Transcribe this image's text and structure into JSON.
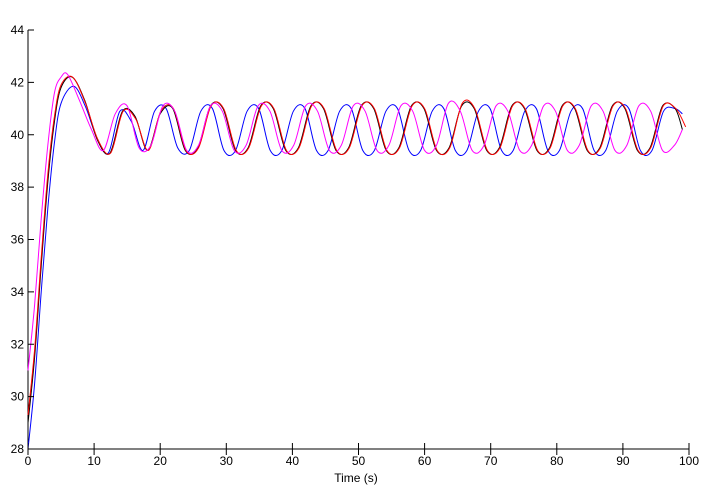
{
  "chart_data": {
    "type": "line",
    "title": "",
    "xlabel": "Time (s)",
    "ylabel": "",
    "caption": "",
    "xlim": [
      0,
      100
    ],
    "ylim": [
      28,
      44
    ],
    "xticks": [
      0,
      10,
      20,
      30,
      40,
      50,
      60,
      70,
      80,
      90,
      100
    ],
    "yticks": [
      28,
      30,
      32,
      34,
      36,
      38,
      40,
      42,
      44
    ],
    "grid": false,
    "series": [
      {
        "color": "#0000ff",
        "x": [
          0,
          1,
          2,
          3,
          4,
          5,
          6.9,
          8.65,
          10.4,
          12.15,
          13.9,
          15.65,
          17.4,
          19.15,
          20.9,
          22.65,
          24.4,
          26.15,
          27.9,
          29.65,
          31.4,
          33.15,
          34.9,
          36.65,
          38.4,
          40.15,
          41.9,
          43.65,
          45.4,
          47.15,
          48.9,
          50.65,
          52.4,
          54.15,
          55.9,
          57.65,
          59.4,
          61.15,
          62.9,
          64.65,
          66.4,
          68.15,
          69.9,
          71.65,
          73.4,
          75.15,
          76.9,
          78.65,
          80.4,
          82.15,
          83.9,
          85.65,
          87.4,
          89.15,
          90.9,
          92.65,
          94.4,
          96.15,
          97.9,
          99
        ],
        "y": [
          28.0,
          30.5,
          34.0,
          37.2,
          39.7,
          41.2,
          41.85,
          41.1,
          39.9,
          39.3,
          40.9,
          40.5,
          39.4,
          40.9,
          41.0,
          39.5,
          39.4,
          40.9,
          41.0,
          39.4,
          39.4,
          40.9,
          41.0,
          39.4,
          39.4,
          40.9,
          41.0,
          39.4,
          39.4,
          40.9,
          41.0,
          39.4,
          39.4,
          40.9,
          41.0,
          39.4,
          39.4,
          40.9,
          41.0,
          39.4,
          39.4,
          40.9,
          41.0,
          39.4,
          39.4,
          40.9,
          41.0,
          39.4,
          39.4,
          40.9,
          41.0,
          39.4,
          39.4,
          40.9,
          41.0,
          39.4,
          39.4,
          40.9,
          41.0,
          40.8
        ]
      },
      {
        "color": "#000000",
        "x": [
          0,
          1,
          2,
          3,
          4,
          5,
          6.7,
          8.6,
          10.5,
          12.4,
          14.3,
          16.2,
          18.1,
          20.0,
          21.9,
          23.8,
          25.7,
          27.6,
          29.5,
          31.4,
          33.3,
          35.2,
          37.1,
          39.0,
          40.9,
          42.8,
          44.7,
          46.6,
          48.5,
          50.4,
          52.3,
          54.2,
          56.1,
          58.0,
          59.9,
          61.8,
          63.7,
          65.6,
          67.5,
          69.4,
          71.3,
          73.2,
          75.1,
          77.0,
          78.9,
          80.8,
          82.7,
          84.6,
          86.5,
          88.4,
          90.3,
          92.2,
          94.1,
          96.0,
          97.9,
          99
        ],
        "y": [
          29.0,
          31.5,
          35.0,
          38.2,
          40.5,
          41.8,
          42.2,
          41.3,
          39.8,
          39.3,
          40.9,
          40.7,
          39.4,
          40.8,
          41.0,
          39.4,
          39.5,
          41.1,
          41.0,
          39.4,
          39.5,
          41.1,
          41.0,
          39.4,
          39.5,
          41.1,
          41.0,
          39.4,
          39.5,
          41.1,
          41.0,
          39.4,
          39.5,
          41.1,
          41.0,
          39.4,
          39.5,
          41.1,
          41.0,
          39.4,
          39.5,
          41.1,
          41.0,
          39.4,
          39.5,
          41.1,
          41.0,
          39.4,
          39.5,
          41.1,
          41.0,
          39.4,
          39.5,
          41.1,
          41.0,
          40.2
        ]
      },
      {
        "color": "#ff0000",
        "x": [
          0,
          1,
          2,
          3,
          4,
          5,
          6.75,
          8.7,
          10.6,
          12.5,
          14.4,
          16.3,
          18.2,
          20.1,
          22.0,
          23.9,
          25.8,
          27.7,
          29.6,
          31.5,
          33.4,
          35.3,
          37.2,
          39.1,
          41.0,
          42.9,
          44.8,
          46.7,
          48.6,
          50.5,
          52.4,
          54.3,
          56.2,
          58.1,
          60.0,
          61.9,
          63.8,
          65.7,
          67.6,
          69.5,
          71.4,
          73.3,
          75.2,
          77.1,
          79.0,
          80.9,
          82.8,
          84.7,
          86.6,
          88.5,
          90.4,
          92.3,
          94.2,
          96.1,
          98.0,
          99.5
        ],
        "y": [
          29.3,
          31.8,
          35.3,
          38.5,
          40.7,
          41.9,
          42.2,
          41.2,
          39.8,
          39.3,
          40.9,
          40.6,
          39.4,
          40.9,
          41.0,
          39.4,
          39.5,
          41.1,
          41.0,
          39.4,
          39.5,
          41.1,
          41.0,
          39.4,
          39.5,
          41.1,
          41.0,
          39.4,
          39.5,
          41.1,
          41.0,
          39.4,
          39.5,
          41.1,
          41.0,
          39.4,
          39.5,
          41.2,
          41.0,
          39.4,
          39.5,
          41.1,
          41.0,
          39.4,
          39.5,
          41.1,
          41.0,
          39.4,
          39.5,
          41.1,
          41.0,
          39.4,
          39.5,
          41.1,
          41.0,
          40.3
        ]
      },
      {
        "color": "#ff00ff",
        "x": [
          0,
          1,
          2,
          3,
          4,
          5,
          6.0,
          7.8,
          9.6,
          11.4,
          13.2,
          15.0,
          16.8,
          18.6,
          20.4,
          22.2,
          24.0,
          25.8,
          27.6,
          29.4,
          31.2,
          33.0,
          34.8,
          36.6,
          38.4,
          40.2,
          42.0,
          43.8,
          45.6,
          47.4,
          49.2,
          51.0,
          52.8,
          54.6,
          56.4,
          58.2,
          60.0,
          61.8,
          63.6,
          65.4,
          67.2,
          69.0,
          70.8,
          72.6,
          74.4,
          76.2,
          78.0,
          79.8,
          81.6,
          83.4,
          85.2,
          87.0,
          88.8,
          90.6,
          92.4,
          94.2,
          96.0,
          97.8,
          99
        ],
        "y": [
          31.0,
          33.5,
          36.8,
          39.6,
          41.6,
          42.2,
          42.3,
          41.3,
          40.2,
          39.4,
          40.8,
          41.1,
          39.5,
          39.6,
          41.1,
          40.9,
          39.4,
          39.6,
          41.1,
          40.9,
          39.4,
          39.6,
          41.1,
          40.9,
          39.4,
          39.6,
          41.1,
          40.9,
          39.4,
          39.6,
          41.1,
          40.9,
          39.4,
          39.6,
          41.1,
          40.9,
          39.4,
          39.6,
          41.2,
          40.9,
          39.4,
          39.6,
          41.1,
          40.9,
          39.4,
          39.6,
          41.1,
          40.9,
          39.4,
          39.6,
          41.1,
          40.9,
          39.4,
          39.6,
          41.1,
          40.9,
          39.4,
          39.6,
          40.2
        ]
      }
    ]
  }
}
